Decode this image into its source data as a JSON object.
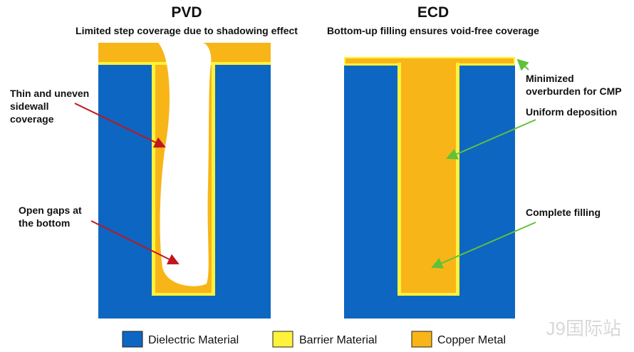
{
  "panels": [
    {
      "title": "PVD",
      "subtitle": "Limited step coverage due to shadowing effect",
      "annotations": [
        {
          "lines": [
            "Thin and uneven",
            "sidewall",
            "coverage"
          ]
        },
        {
          "lines": [
            "Open gaps at",
            "the bottom"
          ]
        }
      ]
    },
    {
      "title": "ECD",
      "subtitle": "Bottom-up filling ensures void-free coverage",
      "annotations": [
        {
          "lines": [
            "Minimized",
            "overburden for CMP"
          ]
        },
        {
          "lines": [
            "Uniform deposition"
          ]
        },
        {
          "lines": [
            "Complete filling"
          ]
        }
      ]
    }
  ],
  "legend": [
    {
      "label": "Dielectric Material"
    },
    {
      "label": "Barrier Material"
    },
    {
      "label": "Copper Metal"
    }
  ],
  "watermark": "J9国际站"
}
